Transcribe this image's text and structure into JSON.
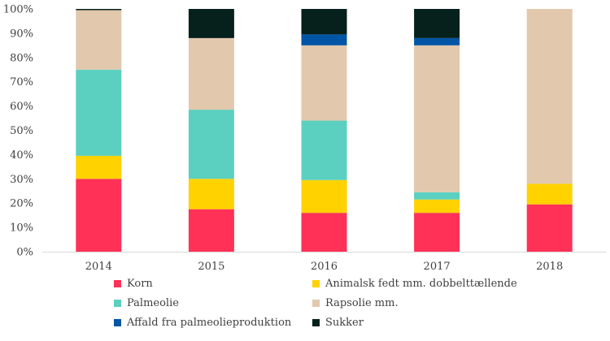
{
  "chart_data": {
    "type": "bar",
    "stacked": true,
    "categories": [
      "2014",
      "2015",
      "2016",
      "2017",
      "2018"
    ],
    "ylim": [
      0,
      100
    ],
    "yticks": [
      "0%",
      "10%",
      "20%",
      "30%",
      "40%",
      "50%",
      "60%",
      "70%",
      "80%",
      "90%",
      "100%"
    ],
    "series": [
      {
        "name": "Korn",
        "color": "#ff3157",
        "values": [
          30,
          17.5,
          16,
          16,
          19.5
        ]
      },
      {
        "name": "Animalsk fedt mm. dobbelttællende",
        "color": "#ffd200",
        "values": [
          9.5,
          12.5,
          13.5,
          5.5,
          8.5
        ]
      },
      {
        "name": "Palmeolie",
        "color": "#5cd0c0",
        "values": [
          35.5,
          28.5,
          24.5,
          3,
          0
        ]
      },
      {
        "name": "Rapsolie mm.",
        "color": "#e2c8ad",
        "values": [
          24.5,
          29.5,
          31,
          60.5,
          72
        ]
      },
      {
        "name": "Affald fra palmeolieproduktion",
        "color": "#0055a5",
        "values": [
          0,
          0,
          4.5,
          3,
          0
        ]
      },
      {
        "name": "Sukker",
        "color": "#06201c",
        "values": [
          0.5,
          12,
          10.5,
          12,
          0
        ]
      }
    ],
    "legend_position": "bottom",
    "grid": false
  }
}
